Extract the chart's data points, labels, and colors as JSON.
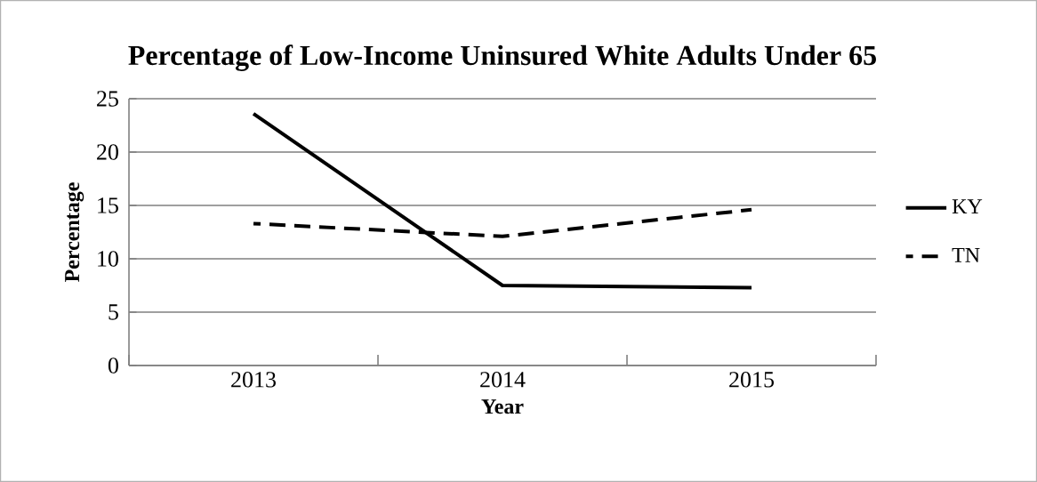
{
  "chart_data": {
    "type": "line",
    "title": "Percentage of Low-Income Uninsured White Adults Under 65",
    "xlabel": "Year",
    "ylabel": "Percentage",
    "categories": [
      "2013",
      "2014",
      "2015"
    ],
    "series": [
      {
        "name": "KY",
        "color": "#000000",
        "line_style": "solid",
        "values": [
          23.6,
          7.5,
          7.3
        ]
      },
      {
        "name": "TN",
        "color": "#000000",
        "line_style": "dashed",
        "values": [
          13.3,
          12.1,
          14.6
        ]
      }
    ],
    "ylim": [
      0,
      25
    ],
    "yticks": [
      0,
      5,
      10,
      15,
      20,
      25
    ],
    "grid": "y",
    "legend": "right",
    "marker": "none"
  }
}
